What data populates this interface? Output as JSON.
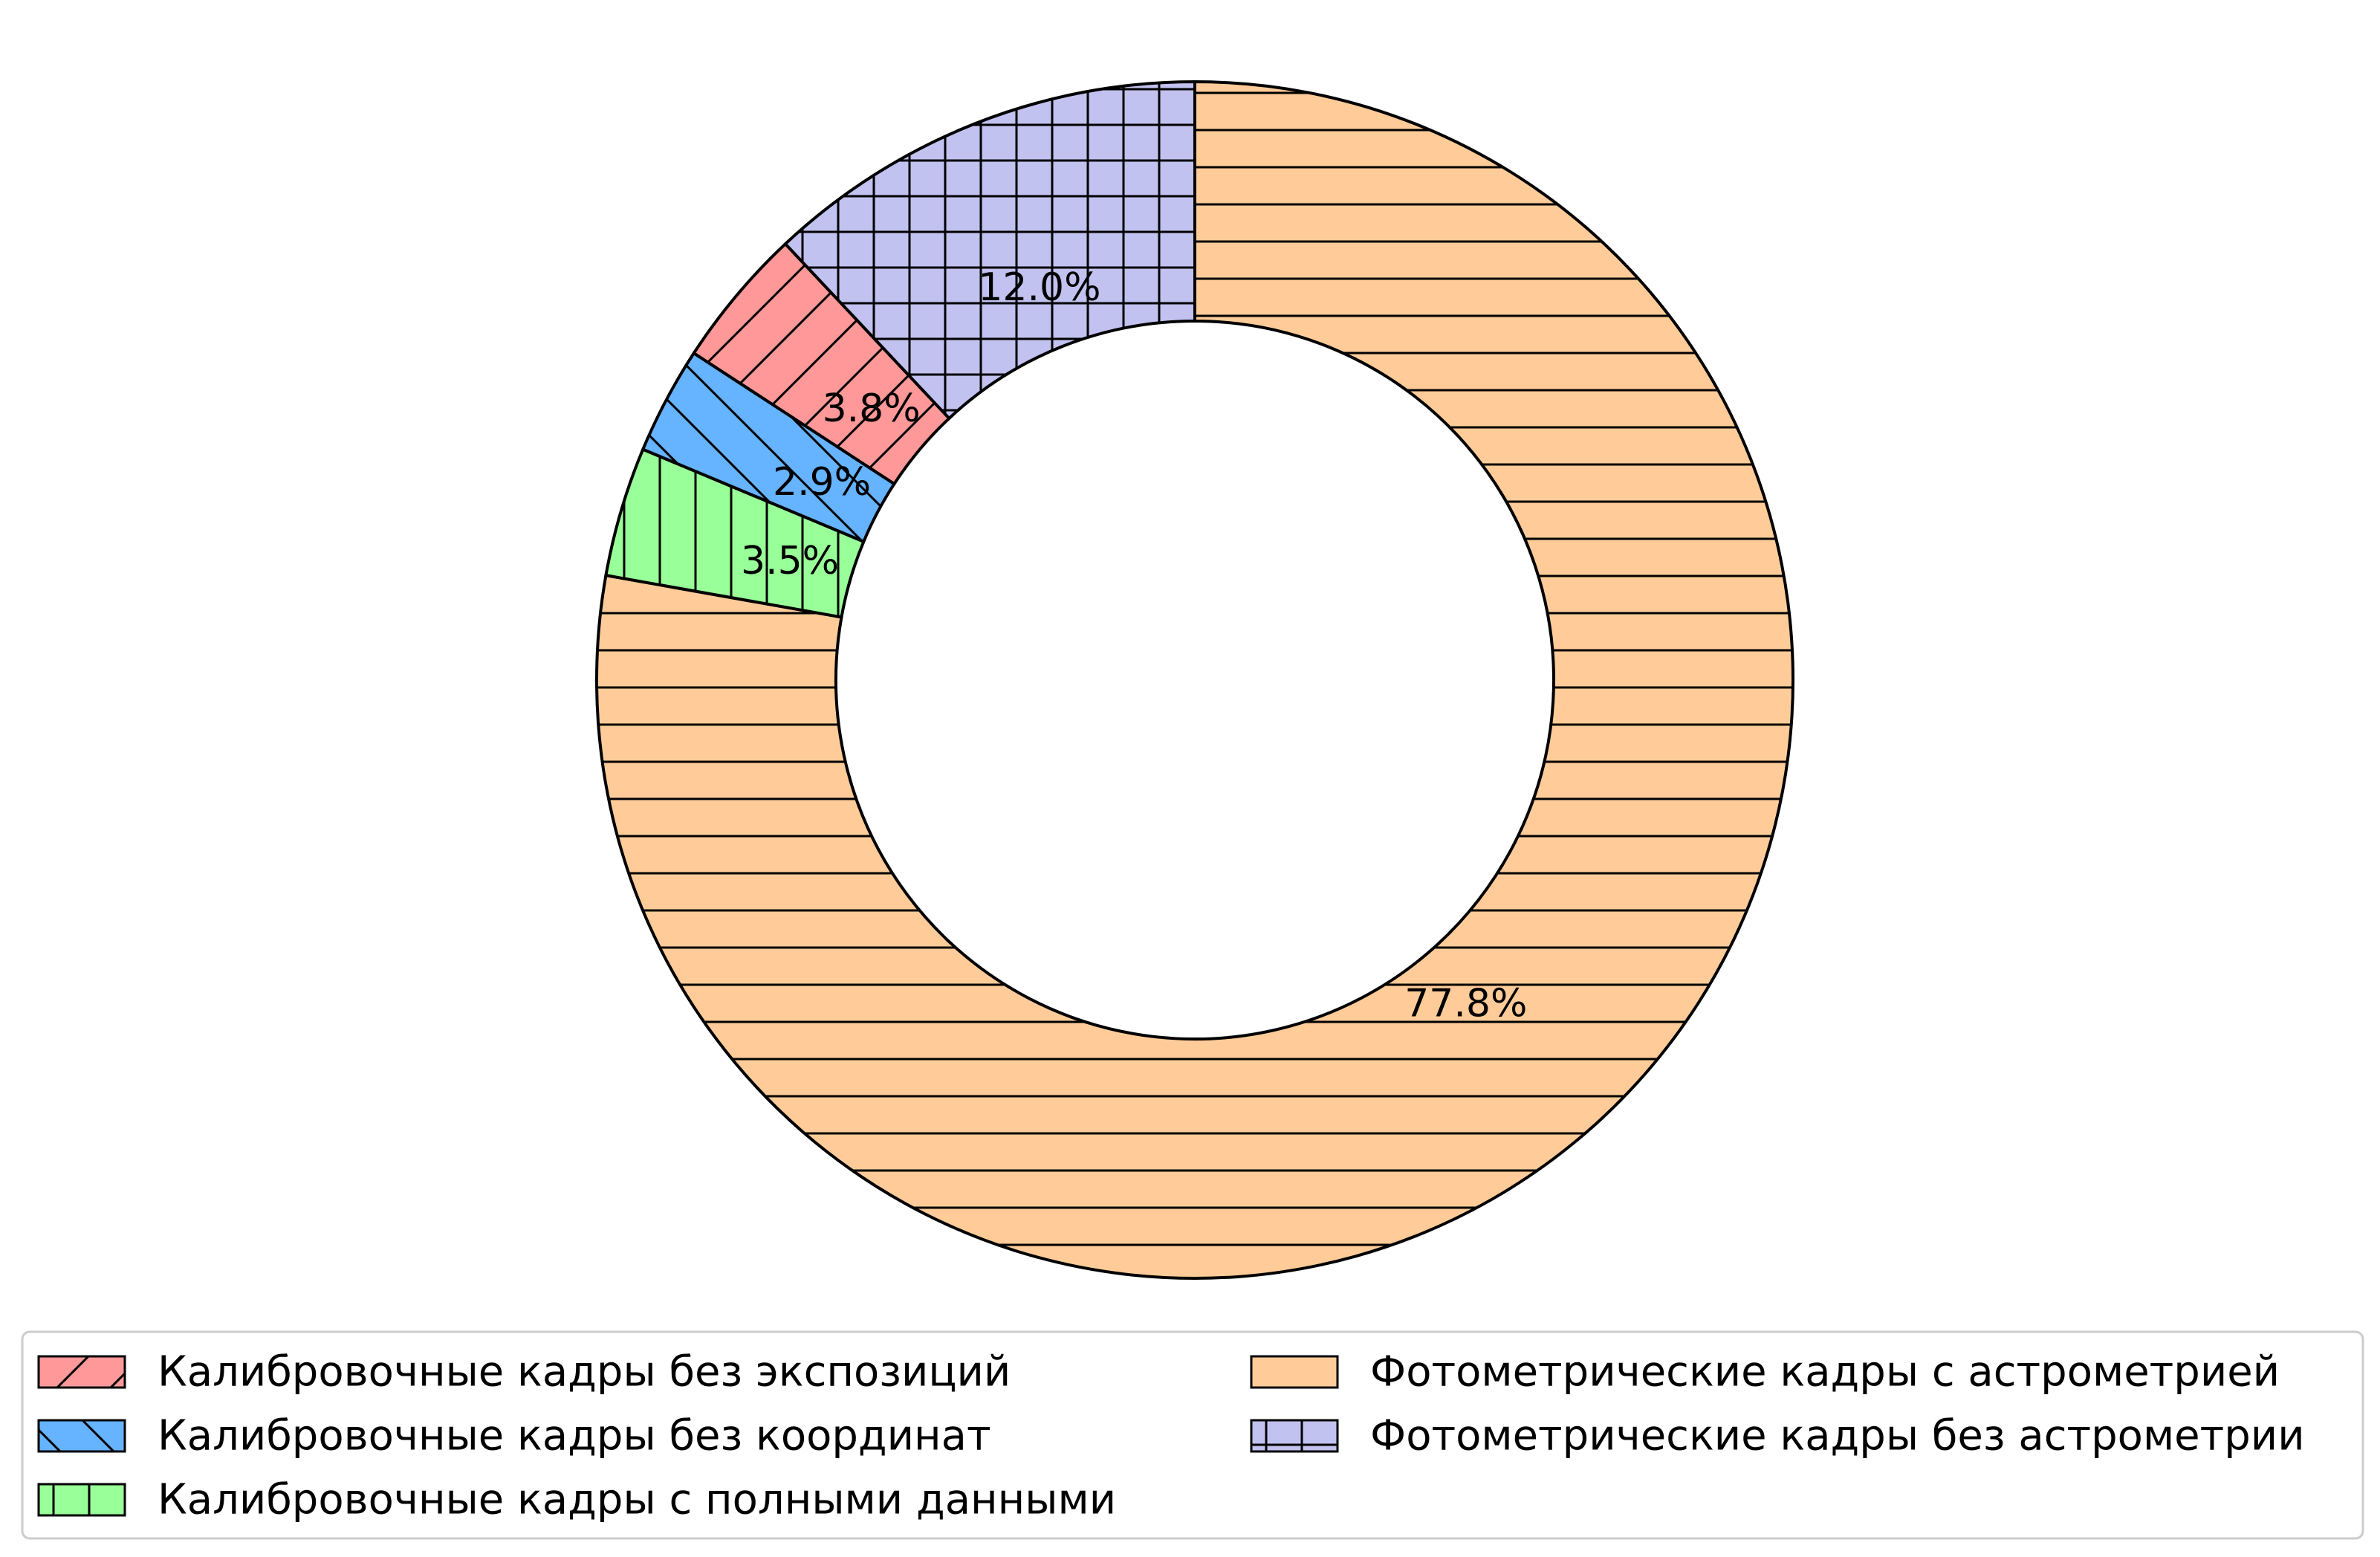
{
  "chart_data": {
    "type": "pie",
    "variant": "donut",
    "start_angle_deg": 90,
    "direction": "clockwise",
    "slices": [
      {
        "label": "Фотометрические кадры с астрометрией",
        "value": 77.8,
        "pct_label": "77.8%",
        "color": "#ffcc99",
        "hatch": "horizontal"
      },
      {
        "label": "Калибровочные кадры с полными данными",
        "value": 3.5,
        "pct_label": "3.5%",
        "color": "#99ff99",
        "hatch": "vertical"
      },
      {
        "label": "Калибровочные кадры без координат",
        "value": 2.9,
        "pct_label": "2.9%",
        "color": "#66b3ff",
        "hatch": "backslash"
      },
      {
        "label": "Калибровочные кадры без экспозиций",
        "value": 3.8,
        "pct_label": "3.8%",
        "color": "#ff9999",
        "hatch": "slash"
      },
      {
        "label": "Фотометрические кадры без астрометрии",
        "value": 12.0,
        "pct_label": "12.0%",
        "color": "#c2c2f0",
        "hatch": "grid"
      }
    ],
    "legend": {
      "placement": "bottom",
      "columns": 2,
      "order": [
        3,
        2,
        1,
        0,
        4
      ]
    }
  }
}
